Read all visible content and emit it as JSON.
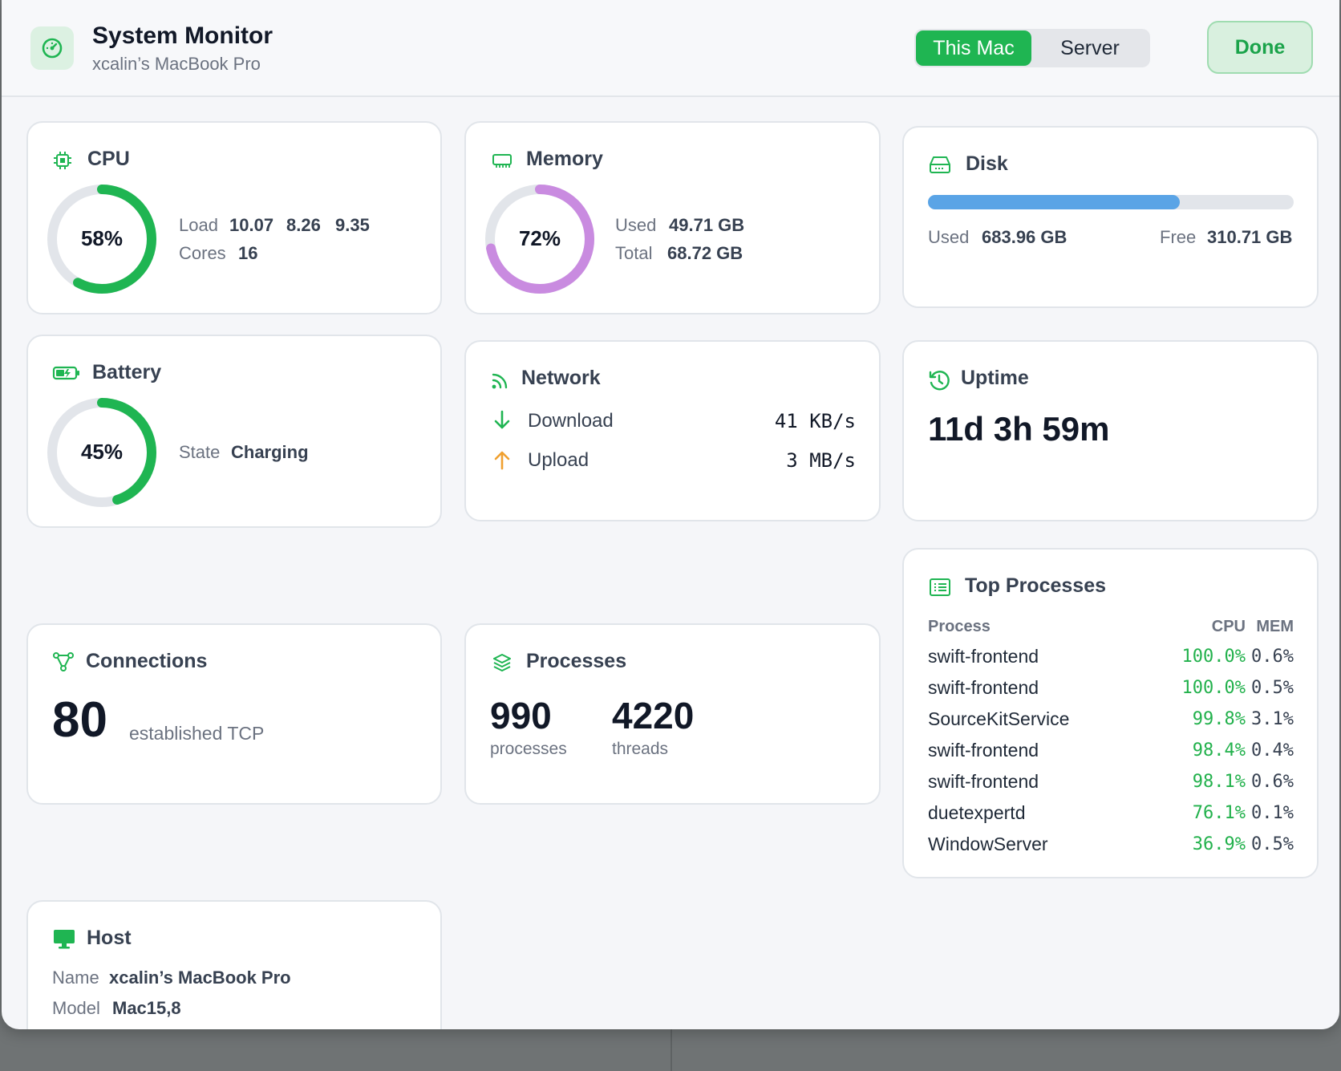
{
  "header": {
    "title": "System Monitor",
    "subtitle": "xcalin’s MacBook Pro",
    "segments": [
      "This Mac",
      "Server"
    ],
    "done_label": "Done"
  },
  "cpu": {
    "title": "CPU",
    "percent_label": "58%",
    "percent": 58,
    "load_label": "Load",
    "load": [
      "10.07",
      "8.26",
      "9.35"
    ],
    "cores_label": "Cores",
    "cores": "16"
  },
  "memory": {
    "title": "Memory",
    "percent_label": "72%",
    "percent": 72,
    "used_label": "Used",
    "used": "49.71 GB",
    "total_label": "Total",
    "total": "68.72 GB"
  },
  "disk": {
    "title": "Disk",
    "used_fraction": 0.688,
    "used_label": "Used",
    "used": "683.96 GB",
    "free_label": "Free",
    "free": "310.71 GB"
  },
  "battery": {
    "title": "Battery",
    "percent_label": "45%",
    "percent": 45,
    "state_label": "State",
    "state": "Charging"
  },
  "network": {
    "title": "Network",
    "download_label": "Download",
    "download": "41 KB/s",
    "upload_label": "Upload",
    "upload": "3 MB/s"
  },
  "uptime": {
    "title": "Uptime",
    "value": "11d 3h 59m"
  },
  "connections": {
    "title": "Connections",
    "count": "80",
    "caption": "established TCP"
  },
  "processes": {
    "title": "Processes",
    "count": "990",
    "count_label": "processes",
    "threads": "4220",
    "threads_label": "threads"
  },
  "top_processes": {
    "title": "Top Processes",
    "headers": [
      "Process",
      "CPU",
      "MEM"
    ],
    "rows": [
      {
        "name": "swift-frontend",
        "cpu": "100.0%",
        "mem": "0.6%"
      },
      {
        "name": "swift-frontend",
        "cpu": "100.0%",
        "mem": "0.5%"
      },
      {
        "name": "SourceKitService",
        "cpu": "99.8%",
        "mem": "3.1%"
      },
      {
        "name": "swift-frontend",
        "cpu": "98.4%",
        "mem": "0.4%"
      },
      {
        "name": "swift-frontend",
        "cpu": "98.1%",
        "mem": "0.6%"
      },
      {
        "name": "duetexpertd",
        "cpu": "76.1%",
        "mem": "0.1%"
      },
      {
        "name": "WindowServer",
        "cpu": "36.9%",
        "mem": "0.5%"
      }
    ]
  },
  "host": {
    "title": "Host",
    "name_label": "Name",
    "name": "xcalin’s MacBook Pro",
    "model_label": "Model",
    "model": "Mac15,8"
  },
  "colors": {
    "accent": "#1fb552",
    "memory": "#c98be0",
    "disk": "#5aa4e6",
    "upload": "#f0a030",
    "ring_track": "#e2e5ea"
  }
}
